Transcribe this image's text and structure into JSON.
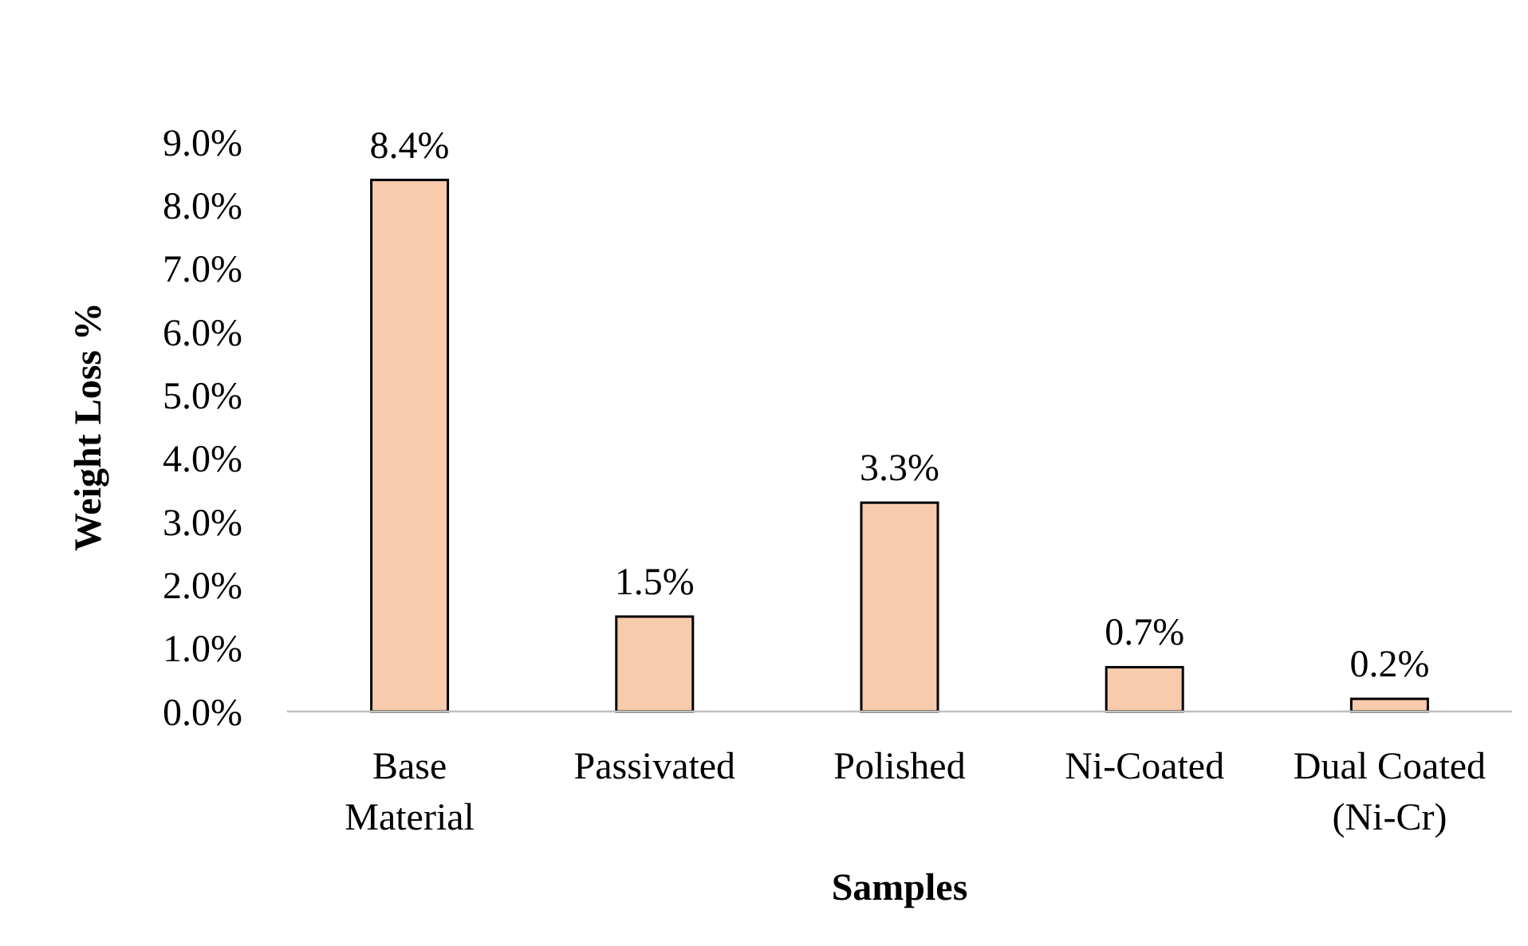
{
  "chart_data": {
    "type": "bar",
    "xlabel": "Samples",
    "ylabel": "Weight Loss %",
    "categories": [
      "Base Material",
      "Passivated",
      "Polished",
      "Ni-Coated",
      "Dual Coated (Ni-Cr)"
    ],
    "values": [
      8.4,
      1.5,
      3.3,
      0.7,
      0.2
    ],
    "color": "#f8cbad",
    "value_labels": [
      "8.4%",
      "1.5%",
      "3.3%",
      "0.7%",
      "0.2%"
    ],
    "ylim": [
      0,
      9
    ],
    "yticks": [
      {
        "value": 0,
        "label": "0.0%"
      },
      {
        "value": 1,
        "label": "1.0%"
      },
      {
        "value": 2,
        "label": "2.0%"
      },
      {
        "value": 3,
        "label": "3.0%"
      },
      {
        "value": 4,
        "label": "4.0%"
      },
      {
        "value": 5,
        "label": "5.0%"
      },
      {
        "value": 6,
        "label": "6.0%"
      },
      {
        "value": 7,
        "label": "7.0%"
      },
      {
        "value": 8,
        "label": "8.0%"
      },
      {
        "value": 9,
        "label": "9.0%"
      }
    ],
    "grid": false
  }
}
